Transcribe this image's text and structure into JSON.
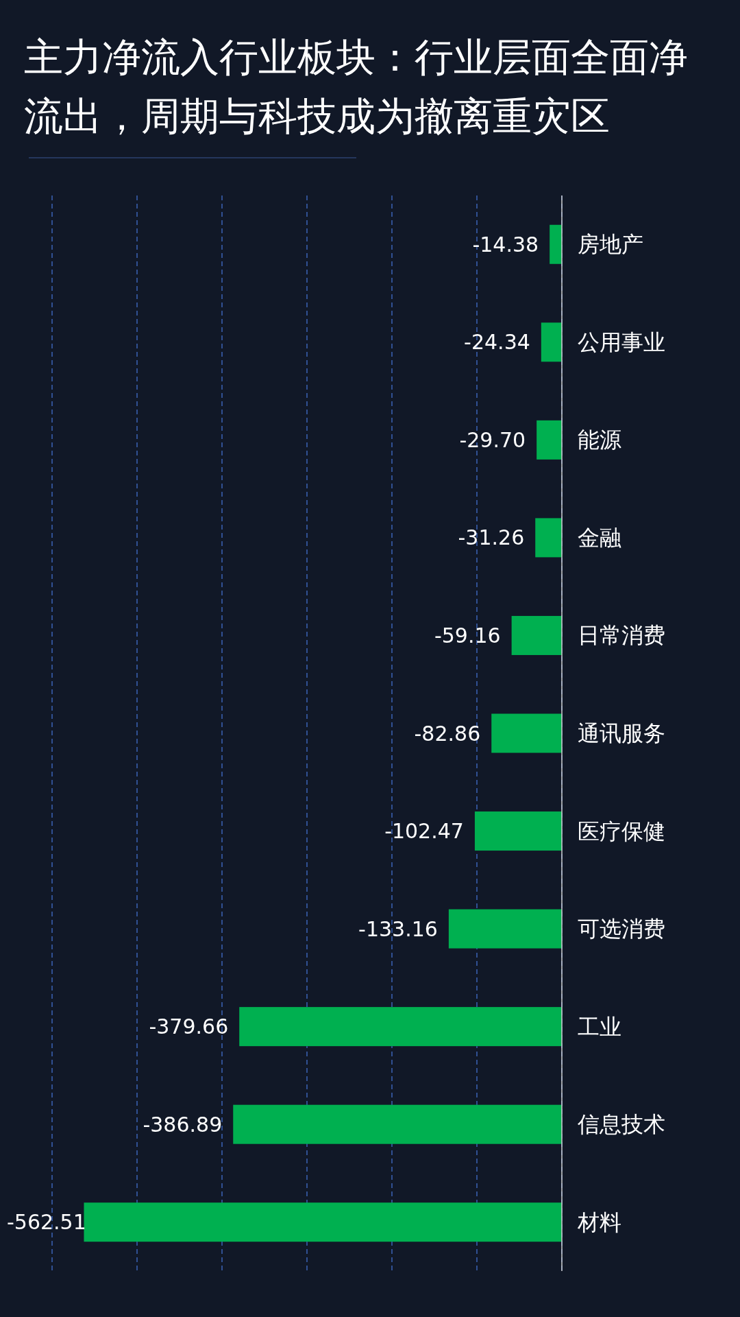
{
  "chart_data": {
    "type": "bar",
    "orientation": "horizontal",
    "title": "主力净流入行业板块：行业层面全面净流出，周期与科技成为撤离重灾区",
    "categories": [
      "房地产",
      "公用事业",
      "能源",
      "金融",
      "日常消费",
      "通讯服务",
      "医疗保健",
      "可选消费",
      "工业",
      "信息技术",
      "材料"
    ],
    "values": [
      -14.38,
      -24.34,
      -29.7,
      -31.26,
      -59.16,
      -82.86,
      -102.47,
      -133.16,
      -379.66,
      -386.89,
      -562.51
    ],
    "value_labels": [
      "-14.38",
      "-24.34",
      "-29.70",
      "-31.26",
      "-59.16",
      "-82.86",
      "-102.47",
      "-133.16",
      "-379.66",
      "-386.89",
      "-562.51"
    ],
    "color": "#00b050",
    "xlim": [
      -600,
      0
    ],
    "xticks": [
      {
        "value": -600,
        "label": null
      },
      {
        "value": -500,
        "label": null
      },
      {
        "value": -400,
        "label": null
      },
      {
        "value": -300,
        "label": null
      },
      {
        "value": -200,
        "label": null
      },
      {
        "value": -100,
        "label": null
      },
      {
        "value": 0,
        "label": null
      }
    ],
    "grid": "x",
    "tick_labels": "y"
  }
}
